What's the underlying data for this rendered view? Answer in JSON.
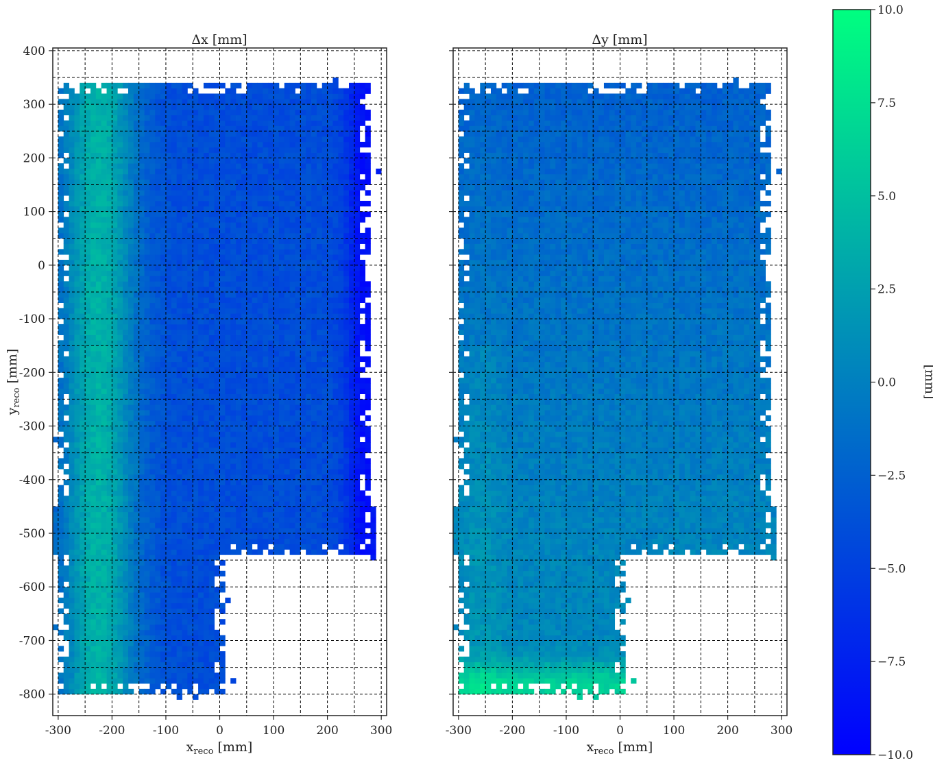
{
  "chart_data": [
    {
      "type": "heatmap",
      "title": "Δx [mm]",
      "xlabel": "x_reco [mm]",
      "ylabel": "y_reco [mm]",
      "xlim": [
        -310,
        310
      ],
      "ylim": [
        -840,
        405
      ],
      "xticks": [
        -300,
        -200,
        -100,
        0,
        100,
        200,
        300
      ],
      "yticks": [
        400,
        300,
        200,
        100,
        0,
        -100,
        -200,
        -300,
        -400,
        -500,
        -600,
        -700,
        -800
      ],
      "grid": true,
      "bin_size_mm": 10,
      "value_model": "dx ≈ 8·exp(-((x+230)/70)^2) − 4 − 5·exp(-((x−265)/35)^2)",
      "coverage": "x from -300 to 310 for y in [-540, 340]; x from -300 to 10 for y in [-800, -540]"
    },
    {
      "type": "heatmap",
      "title": "Δy [mm]",
      "xlabel": "x_reco [mm]",
      "ylabel": "",
      "xlim": [
        -310,
        310
      ],
      "ylim": [
        -840,
        405
      ],
      "xticks": [
        -300,
        -200,
        -100,
        0,
        100,
        200,
        300
      ],
      "yticks": [
        400,
        300,
        200,
        100,
        0,
        -100,
        -200,
        -300,
        -400,
        -500,
        -600,
        -700,
        -800
      ],
      "grid": true,
      "bin_size_mm": 10,
      "value_model": "dy ≈ −2.5 at top rising to ≈ +0.5 near y=-550 and ≈ +7 near y=-790",
      "coverage": "same as Δx panel"
    }
  ],
  "colorbar": {
    "label": "[mm]",
    "min": -10.0,
    "max": 10.0,
    "ticks": [
      "10.0",
      "7.5",
      "5.0",
      "2.5",
      "0.0",
      "−2.5",
      "−5.0",
      "−7.5",
      "−10.0"
    ],
    "colors": {
      "low": "#0000ff",
      "high": "#00ff80"
    }
  },
  "text": {
    "left_title": "Δx [mm]",
    "right_title": "Δy [mm]",
    "xlabel_main": "x",
    "xlabel_sub": "reco",
    "xlabel_unit": " [mm]",
    "ylabel_main": "y",
    "ylabel_sub": "reco",
    "ylabel_unit": " [mm]",
    "cbar_label": "[mm]"
  }
}
